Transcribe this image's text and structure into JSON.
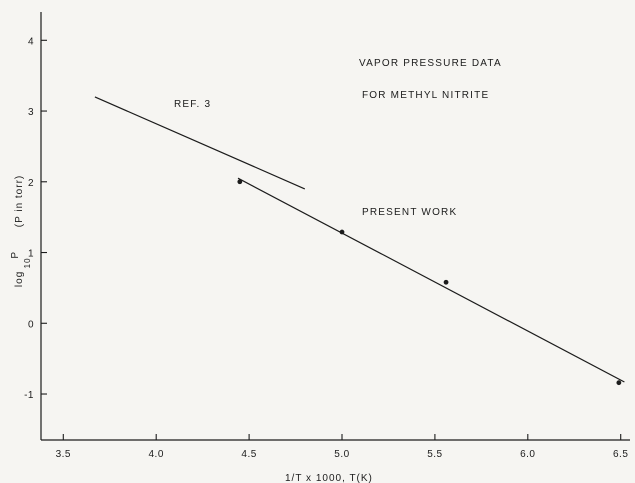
{
  "chart_data": {
    "type": "line",
    "x_ticks": [
      "3.5",
      "4.0",
      "4.5",
      "5.0",
      "5.5",
      "6.0",
      "6.5"
    ],
    "y_ticks": [
      "-1",
      "0",
      "1",
      "2",
      "3",
      "4"
    ],
    "xlim": [
      3.38,
      6.55
    ],
    "ylim": [
      -1.65,
      4.4
    ],
    "xlabel": "1/T x 1000, T(K)",
    "ylabel": {
      "prefix": "log",
      "subscript": "10",
      "main": "P",
      "suffix": "(P in torr)"
    },
    "annotations": {
      "title_line1": "VAPOR PRESSURE DATA",
      "title_line2": "FOR METHYL NITRITE",
      "ref_label": "REF. 3",
      "present_label": "PRESENT WORK"
    },
    "series": [
      {
        "name": "REF. 3",
        "values": [
          [
            3.67,
            3.2
          ],
          [
            4.8,
            1.9
          ]
        ]
      },
      {
        "name": "PRESENT WORK",
        "values": [
          [
            4.44,
            2.05
          ],
          [
            6.52,
            -0.83
          ]
        ]
      }
    ],
    "points": [
      [
        4.45,
        2.0
      ],
      [
        5.0,
        1.29
      ],
      [
        5.56,
        0.58
      ],
      [
        6.49,
        -0.84
      ]
    ]
  }
}
